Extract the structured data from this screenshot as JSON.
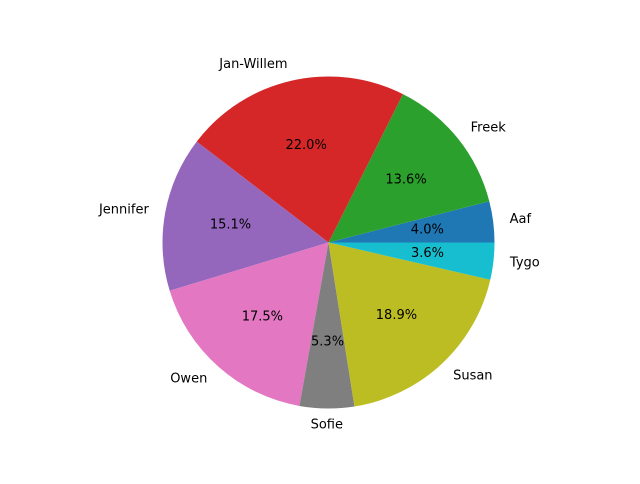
{
  "chart_data": {
    "type": "pie",
    "title": "",
    "start_angle_deg": 0,
    "direction": "counterclockwise",
    "slices": [
      {
        "label": "Aaf",
        "value": 4.0,
        "pct_label": "4.0%",
        "color": "#1f77b4"
      },
      {
        "label": "Freek",
        "value": 13.6,
        "pct_label": "13.6%",
        "color": "#2ca02c"
      },
      {
        "label": "Jan-Willem",
        "value": 22.0,
        "pct_label": "22.0%",
        "color": "#d62728"
      },
      {
        "label": "Jennifer",
        "value": 15.1,
        "pct_label": "15.1%",
        "color": "#9467bd"
      },
      {
        "label": "Owen",
        "value": 17.5,
        "pct_label": "17.5%",
        "color": "#e377c2"
      },
      {
        "label": "Sofie",
        "value": 5.3,
        "pct_label": "5.3%",
        "color": "#7f7f7f"
      },
      {
        "label": "Susan",
        "value": 18.9,
        "pct_label": "18.9%",
        "color": "#bcbd22"
      },
      {
        "label": "Tygo",
        "value": 3.6,
        "pct_label": "3.6%",
        "color": "#17becf"
      }
    ]
  }
}
